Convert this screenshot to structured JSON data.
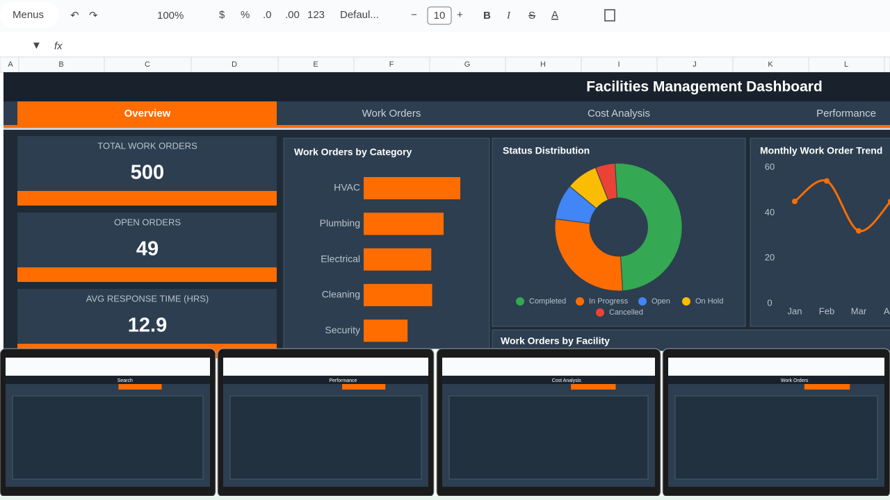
{
  "toolbar": {
    "menus": "Menus",
    "zoom": "100%",
    "currency": "$",
    "percent": "%",
    "dec_less": ".0",
    "dec_more": ".00",
    "format": "123",
    "font": "Defaul...",
    "font_size": "10"
  },
  "formula_bar": {
    "fx": "fx"
  },
  "columns": [
    "A",
    "B",
    "C",
    "D",
    "E",
    "F",
    "G",
    "H",
    "I",
    "J",
    "K",
    "L"
  ],
  "dashboard": {
    "title": "Facilities Management Dashboard",
    "tabs": [
      "Overview",
      "Work Orders",
      "Cost Analysis",
      "Performance"
    ],
    "kpis": [
      {
        "label": "TOTAL WORK ORDERS",
        "value": 500
      },
      {
        "label": "OPEN ORDERS",
        "value": 49
      },
      {
        "label": "AVG RESPONSE TIME (HRS)",
        "value": 12.9
      }
    ],
    "facility_title": "Work Orders by Facility"
  },
  "chart_data": [
    {
      "type": "bar",
      "orientation": "horizontal",
      "title": "Work Orders by Category",
      "categories": [
        "HVAC",
        "Plumbing",
        "Electrical",
        "Cleaning",
        "Security"
      ],
      "values": [
        110,
        91,
        77,
        78,
        50
      ],
      "color": "#ff6d01"
    },
    {
      "type": "pie",
      "donut": true,
      "title": "Status Distribution",
      "categories": [
        "Completed",
        "In Progress",
        "Open",
        "On Hold",
        "Cancelled"
      ],
      "values": [
        50,
        28,
        9,
        8,
        5
      ],
      "colors": [
        "#34a853",
        "#ff6d01",
        "#4285f4",
        "#fbbc04",
        "#ea4335"
      ]
    },
    {
      "type": "line",
      "title": "Monthly Work Order Trend",
      "categories": [
        "Jan",
        "Feb",
        "Mar",
        "Apr"
      ],
      "values": [
        45,
        54,
        32,
        45
      ],
      "color": "#ff6d01",
      "ylim": [
        0,
        60
      ],
      "yticks": [
        0,
        20,
        40,
        60
      ]
    }
  ],
  "thumbnails": [
    {
      "title": "Search"
    },
    {
      "title": "Performance"
    },
    {
      "title": "Cost Analysis"
    },
    {
      "title": "Work Orders"
    }
  ]
}
